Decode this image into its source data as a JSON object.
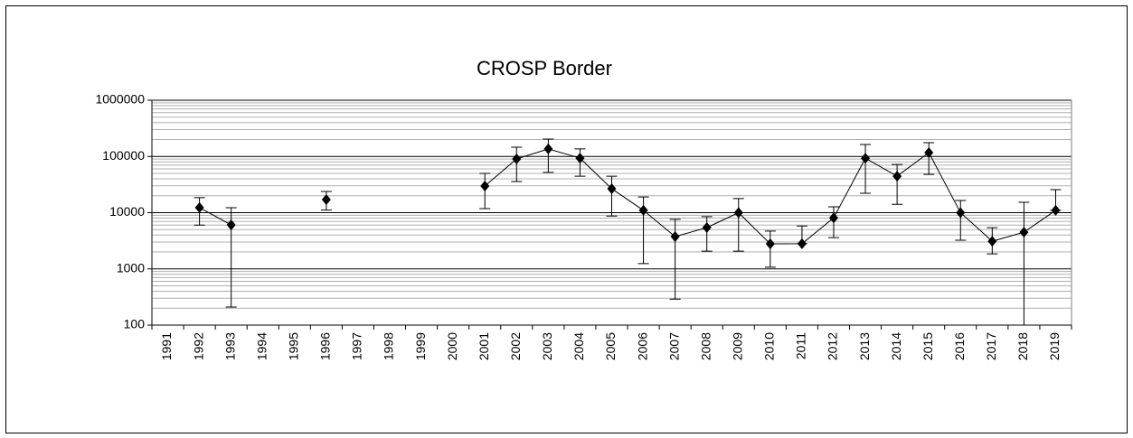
{
  "chart_data": {
    "type": "line",
    "title": "CROSP Border",
    "categories": [
      "1991",
      "1992",
      "1993",
      "1994",
      "1995",
      "1996",
      "1997",
      "1998",
      "1999",
      "2000",
      "2001",
      "2002",
      "2003",
      "2004",
      "2005",
      "2006",
      "2007",
      "2008",
      "2009",
      "2010",
      "2011",
      "2012",
      "2013",
      "2014",
      "2015",
      "2016",
      "2017",
      "2018",
      "2019"
    ],
    "series": [
      {
        "name": "CROSP Border",
        "color": "#000000",
        "values": [
          null,
          12300,
          6070,
          null,
          null,
          17100,
          null,
          null,
          null,
          null,
          29800,
          90300,
          136000,
          93400,
          26700,
          11000,
          3750,
          5430,
          10000,
          2790,
          2800,
          8100,
          93000,
          44600,
          117000,
          10000,
          3100,
          4500,
          11000
        ],
        "error_plus": [
          null,
          6200,
          6200,
          null,
          null,
          6800,
          null,
          null,
          null,
          null,
          20200,
          55700,
          68000,
          42600,
          17900,
          8000,
          3850,
          3070,
          7800,
          1910,
          3000,
          4600,
          70000,
          27400,
          59000,
          6500,
          2300,
          10800,
          14700
        ],
        "error_minus": [
          null,
          6300,
          5860,
          null,
          null,
          6000,
          null,
          null,
          null,
          null,
          18000,
          54500,
          84000,
          48800,
          18000,
          9760,
          3460,
          3360,
          7930,
          1720,
          0,
          4500,
          70900,
          30500,
          69000,
          6760,
          1250,
          4500,
          0
        ]
      }
    ],
    "log_scale": true,
    "grid": true,
    "minor_grid": true,
    "ylim": [
      100,
      1000000
    ],
    "yticks": [
      100,
      1000,
      10000,
      100000,
      1000000
    ]
  }
}
